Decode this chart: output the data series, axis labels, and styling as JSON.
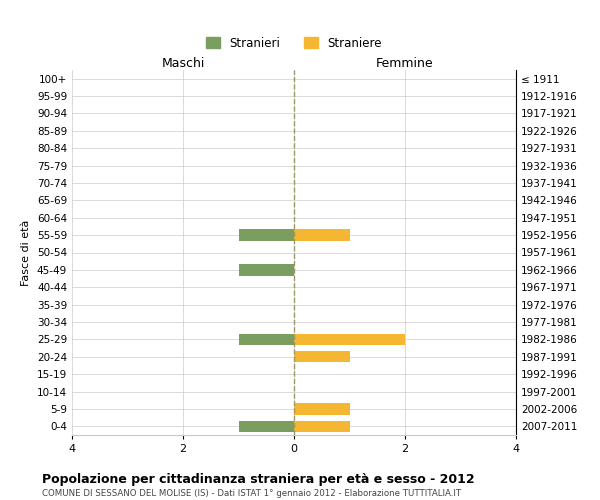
{
  "age_groups": [
    "100+",
    "95-99",
    "90-94",
    "85-89",
    "80-84",
    "75-79",
    "70-74",
    "65-69",
    "60-64",
    "55-59",
    "50-54",
    "45-49",
    "40-44",
    "35-39",
    "30-34",
    "25-29",
    "20-24",
    "15-19",
    "10-14",
    "5-9",
    "0-4"
  ],
  "birth_years": [
    "≤ 1911",
    "1912-1916",
    "1917-1921",
    "1922-1926",
    "1927-1931",
    "1932-1936",
    "1937-1941",
    "1942-1946",
    "1947-1951",
    "1952-1956",
    "1957-1961",
    "1962-1966",
    "1967-1971",
    "1972-1976",
    "1977-1981",
    "1982-1986",
    "1987-1991",
    "1992-1996",
    "1997-2001",
    "2002-2006",
    "2007-2011"
  ],
  "maschi": [
    0,
    0,
    0,
    0,
    0,
    0,
    0,
    0,
    0,
    1,
    0,
    1,
    0,
    0,
    0,
    1,
    0,
    0,
    0,
    0,
    1
  ],
  "femmine": [
    0,
    0,
    0,
    0,
    0,
    0,
    0,
    0,
    0,
    1,
    0,
    0,
    0,
    0,
    0,
    2,
    1,
    0,
    0,
    1,
    1
  ],
  "color_maschi": "#7a9e5f",
  "color_femmine": "#f5b731",
  "title": "Popolazione per cittadinanza straniera per età e sesso - 2012",
  "subtitle": "COMUNE DI SESSANO DEL MOLISE (IS) - Dati ISTAT 1° gennaio 2012 - Elaborazione TUTTITALIA.IT",
  "ylabel_left": "Fasce di età",
  "xlabel_maschi": "Maschi",
  "xlabel_femmine": "Femmine",
  "legend_maschi": "Stranieri",
  "legend_femmine": "Straniere",
  "xlim": 4,
  "background_color": "#ffffff",
  "grid_color": "#cccccc",
  "dashed_line_color": "#999966"
}
